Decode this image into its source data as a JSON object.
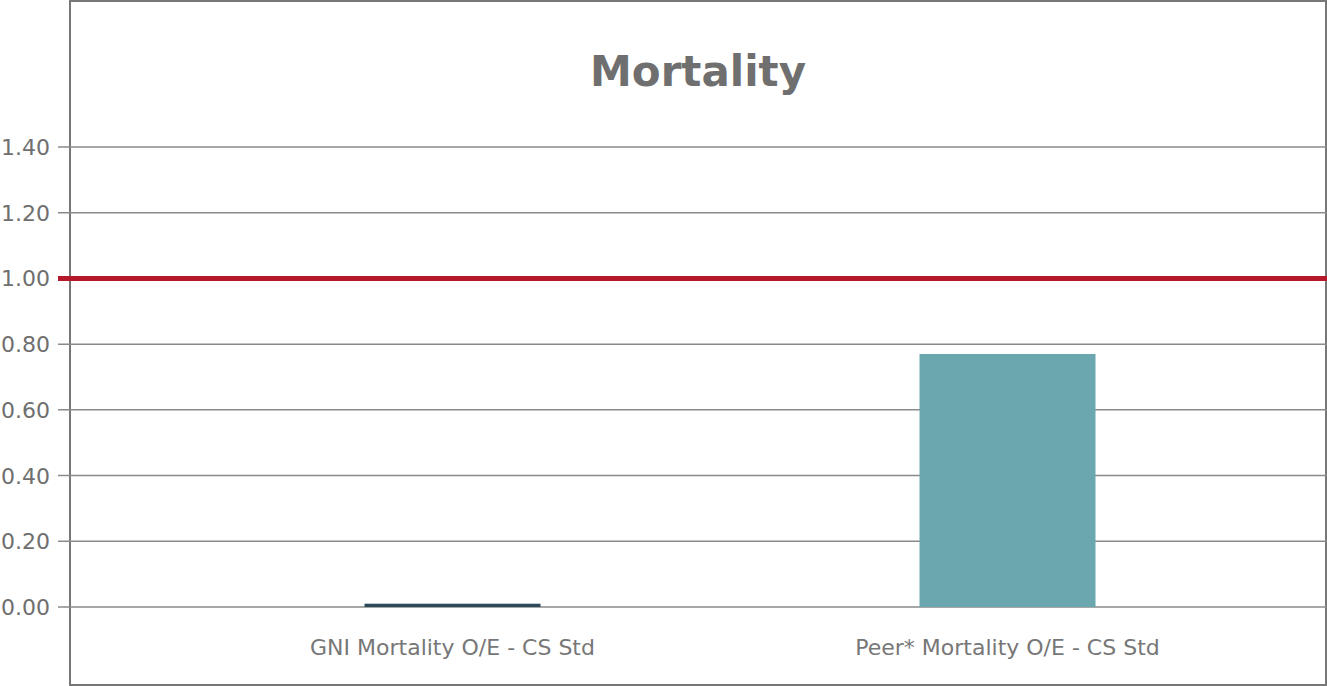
{
  "chart_data": {
    "type": "bar",
    "title": "Mortality",
    "categories": [
      "GNI Mortality O/E - CS Std",
      "Peer* Mortality O/E - CS Std"
    ],
    "values": [
      0.01,
      0.77
    ],
    "colors": [
      "#2c4a5c",
      "#6aa7ae"
    ],
    "ylim": [
      0,
      1.4
    ],
    "yticks": [
      {
        "value": 0,
        "label": "0.00"
      },
      {
        "value": 0.2,
        "label": "0.20"
      },
      {
        "value": 0.4,
        "label": "0.40"
      },
      {
        "value": 0.6,
        "label": "0.60"
      },
      {
        "value": 0.8,
        "label": "0.80"
      },
      {
        "value": 1,
        "label": "1.00"
      },
      {
        "value": 1.2,
        "label": "1.20"
      },
      {
        "value": 1.4,
        "label": "1.40"
      }
    ],
    "reference_line": 1,
    "grid": true
  }
}
